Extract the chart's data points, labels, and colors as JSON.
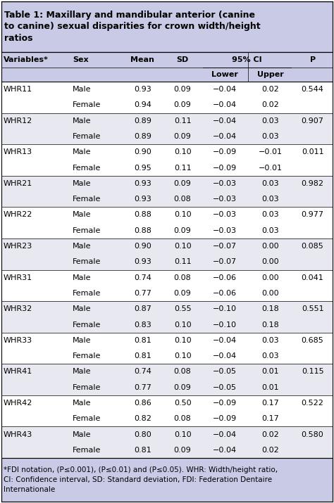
{
  "title": "Table 1: Maxillary and mandibular anterior (canine\nto canine) sexual disparities for crown width/height\nratios",
  "span_header": "95% CI",
  "footnote": "*FDI notation, (P≤0.001), (P≤0.01) and (P≤0.05). WHR: Width/height ratio,\nCI: Confidence interval, SD: Standard deviation, FDI: Federation Dentaire\nInternationale",
  "rows": [
    [
      "WHR11",
      "Male",
      "0.93",
      "0.09",
      "−0.04",
      "0.02",
      "0.544"
    ],
    [
      "",
      "Female",
      "0.94",
      "0.09",
      "−0.04",
      "0.02",
      ""
    ],
    [
      "WHR12",
      "Male",
      "0.89",
      "0.11",
      "−0.04",
      "0.03",
      "0.907"
    ],
    [
      "",
      "Female",
      "0.89",
      "0.09",
      "−0.04",
      "0.03",
      ""
    ],
    [
      "WHR13",
      "Male",
      "0.90",
      "0.10",
      "−0.09",
      "−0.01",
      "0.011"
    ],
    [
      "",
      "Female",
      "0.95",
      "0.11",
      "−0.09",
      "−0.01",
      ""
    ],
    [
      "WHR21",
      "Male",
      "0.93",
      "0.09",
      "−0.03",
      "0.03",
      "0.982"
    ],
    [
      "",
      "Female",
      "0.93",
      "0.08",
      "−0.03",
      "0.03",
      ""
    ],
    [
      "WHR22",
      "Male",
      "0.88",
      "0.10",
      "−0.03",
      "0.03",
      "0.977"
    ],
    [
      "",
      "Female",
      "0.88",
      "0.09",
      "−0.03",
      "0.03",
      ""
    ],
    [
      "WHR23",
      "Male",
      "0.90",
      "0.10",
      "−0.07",
      "0.00",
      "0.085"
    ],
    [
      "",
      "Female",
      "0.93",
      "0.11",
      "−0.07",
      "0.00",
      ""
    ],
    [
      "WHR31",
      "Male",
      "0.74",
      "0.08",
      "−0.06",
      "0.00",
      "0.041"
    ],
    [
      "",
      "Female",
      "0.77",
      "0.09",
      "−0.06",
      "0.00",
      ""
    ],
    [
      "WHR32",
      "Male",
      "0.87",
      "0.55",
      "−0.10",
      "0.18",
      "0.551"
    ],
    [
      "",
      "Female",
      "0.83",
      "0.10",
      "−0.10",
      "0.18",
      ""
    ],
    [
      "WHR33",
      "Male",
      "0.81",
      "0.10",
      "−0.04",
      "0.03",
      "0.685"
    ],
    [
      "",
      "Female",
      "0.81",
      "0.10",
      "−0.04",
      "0.03",
      ""
    ],
    [
      "WHR41",
      "Male",
      "0.74",
      "0.08",
      "−0.05",
      "0.01",
      "0.115"
    ],
    [
      "",
      "Female",
      "0.77",
      "0.09",
      "−0.05",
      "0.01",
      ""
    ],
    [
      "WHR42",
      "Male",
      "0.86",
      "0.50",
      "−0.09",
      "0.17",
      "0.522"
    ],
    [
      "",
      "Female",
      "0.82",
      "0.08",
      "−0.09",
      "0.17",
      ""
    ],
    [
      "WHR43",
      "Male",
      "0.80",
      "0.10",
      "−0.04",
      "0.02",
      "0.580"
    ],
    [
      "",
      "Female",
      "0.81",
      "0.09",
      "−0.04",
      "0.02",
      ""
    ]
  ],
  "bg_color": "#ffffff",
  "title_bg": "#c8cae6",
  "header_bg": "#c8cae6",
  "footnote_bg": "#c8cae6",
  "data_bg_odd": "#ffffff",
  "data_bg_even": "#e8e8f0",
  "border_color": "#000000",
  "text_color": "#000000",
  "font_size": 8.0,
  "title_font_size": 9.0
}
